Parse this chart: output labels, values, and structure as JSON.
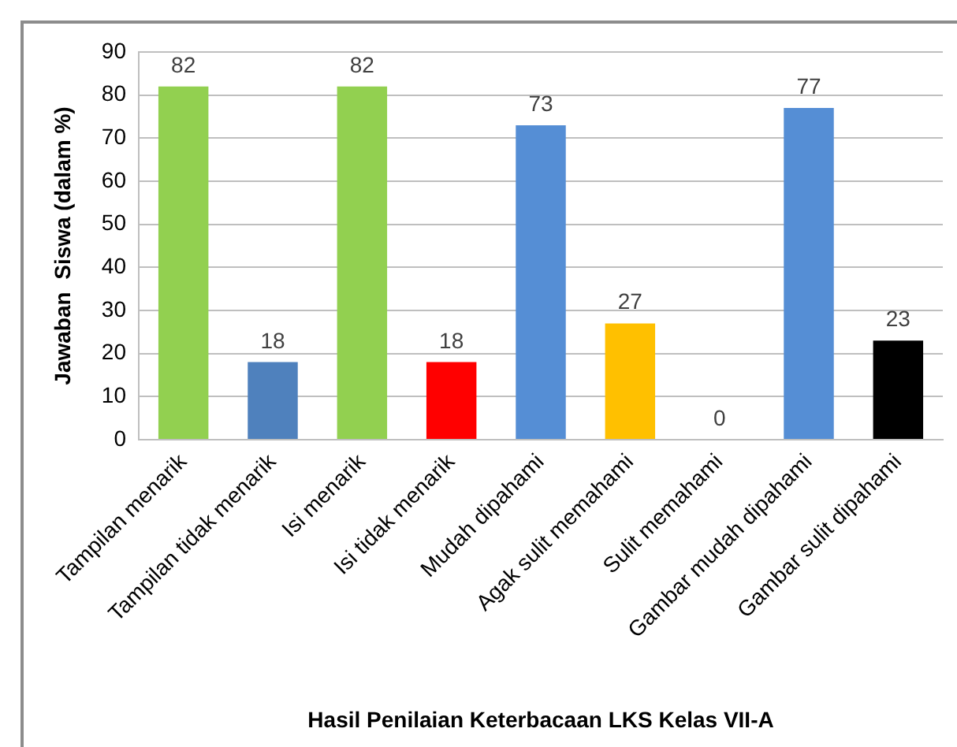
{
  "chart_data": {
    "type": "bar",
    "xlabel": "Hasil Penilaian Keterbacaan LKS Kelas VII-A",
    "ylabel": "Jawaban  Siswa (dalam %)",
    "categories": [
      "Tampilan menarik",
      "Tampilan tidak menarik",
      "Isi menarik",
      "Isi tidak menarik",
      "Mudah dipahami",
      "Agak sulit memahami",
      "Sulit memahami",
      "Gambar mudah dipahami",
      "Gambar sulit dipahami"
    ],
    "values": [
      82,
      18,
      82,
      18,
      73,
      27,
      0,
      77,
      23
    ],
    "colors": [
      "#92d050",
      "#4f81bd",
      "#92d050",
      "#ff0000",
      "#558ed5",
      "#ffc000",
      "#558ed5",
      "#558ed5",
      "#000000"
    ],
    "ylim": [
      0,
      90
    ],
    "yticks": [
      0,
      10,
      20,
      30,
      40,
      50,
      60,
      70,
      80,
      90
    ],
    "grid": "y",
    "data_labels": true
  }
}
